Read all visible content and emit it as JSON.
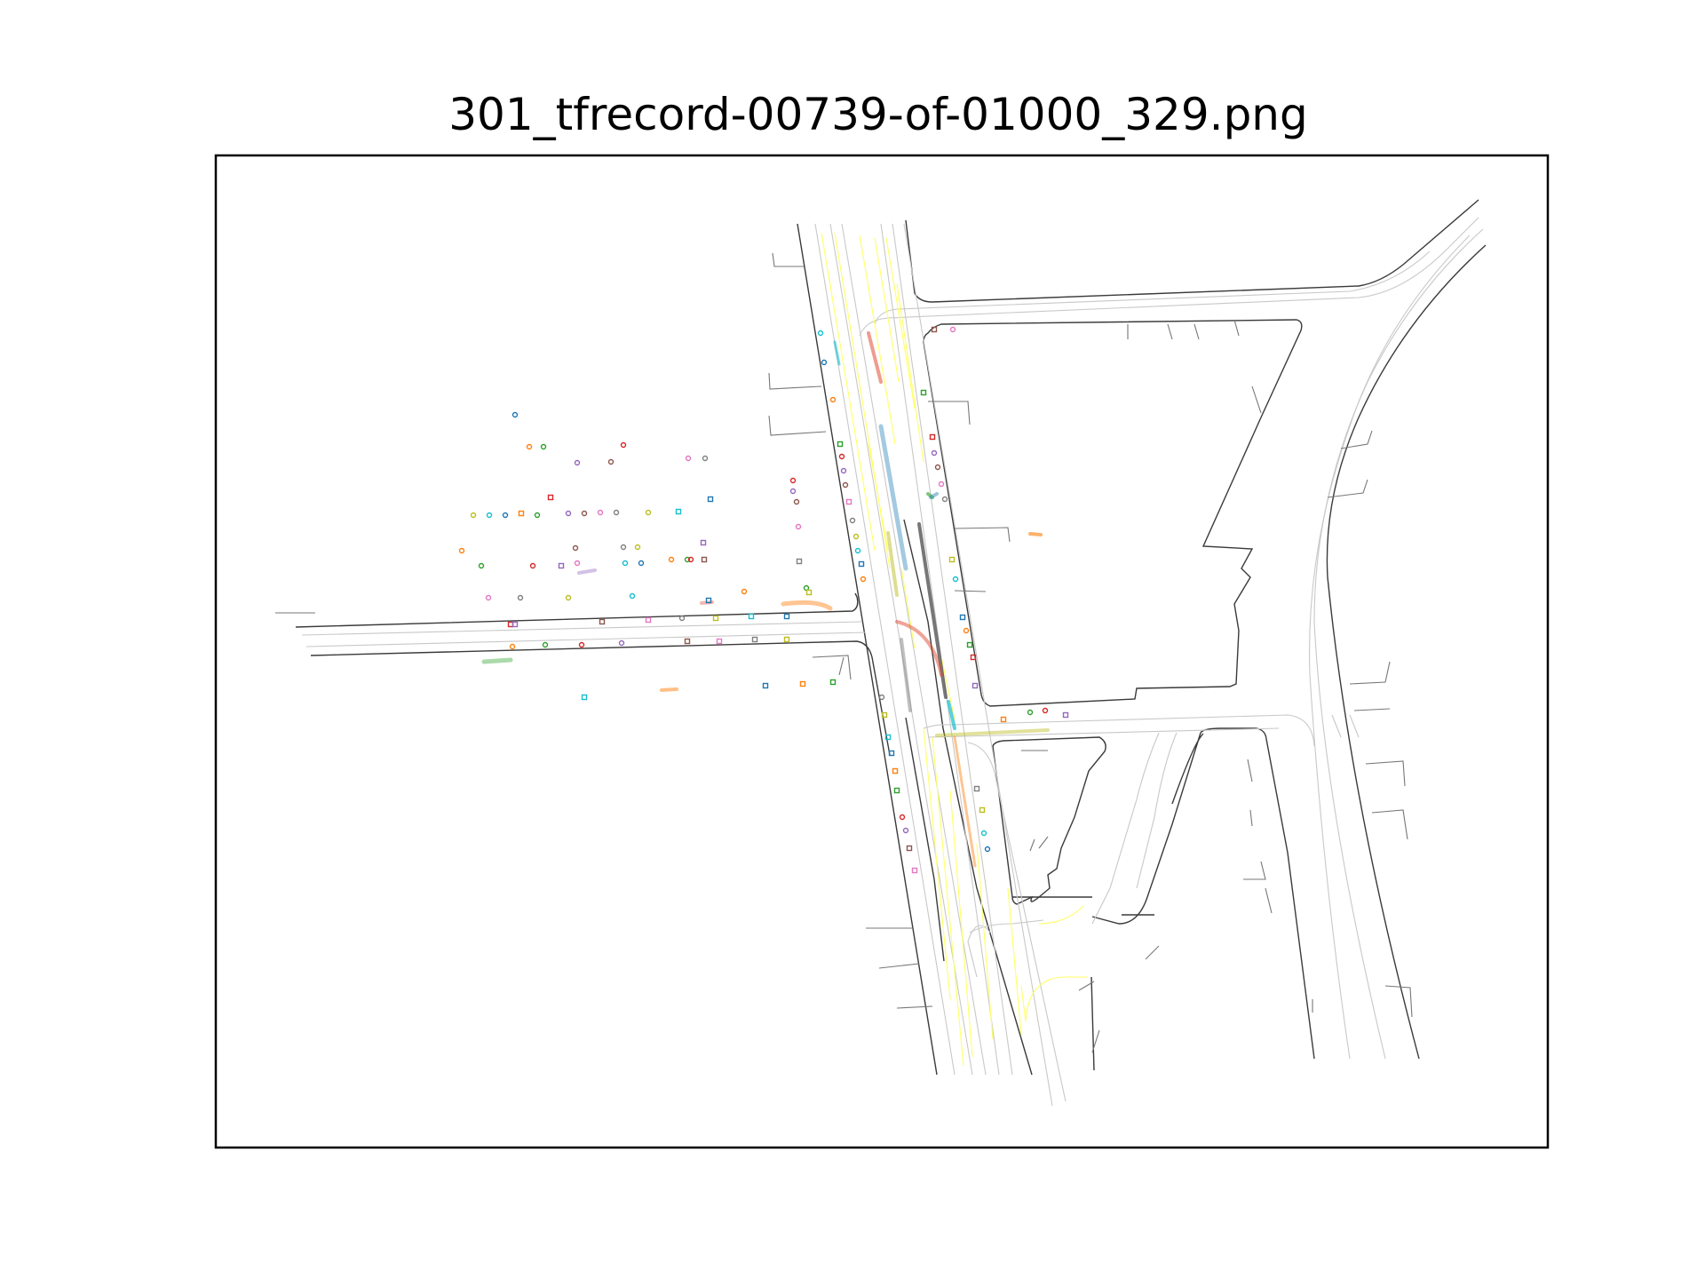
{
  "figure": {
    "title": "301_tfrecord-00739-of-01000_329.png"
  },
  "colors": {
    "road_edge": "#3a3a3a",
    "lane_center": "#c8c8c8",
    "lane_divider_yellow": "#ffff66",
    "stop_stub": "#777777",
    "frame": "#000000"
  },
  "scene": {
    "description_fields_hidden": true,
    "agent_track_colors": [
      "#e24a33",
      "#348abd",
      "#2ca02c",
      "#ff7f0e",
      "#17becf",
      "#7f7f7f",
      "#bcbd22",
      "#9467bd",
      "#e377c2",
      "#8c564b"
    ],
    "markers": {
      "pedestrian_squares_color_cycle": [
        "#1f77b4",
        "#ff7f0e",
        "#2ca02c",
        "#d62728",
        "#9467bd",
        "#8c564b",
        "#e377c2",
        "#7f7f7f",
        "#bcbd22",
        "#17becf"
      ]
    }
  }
}
